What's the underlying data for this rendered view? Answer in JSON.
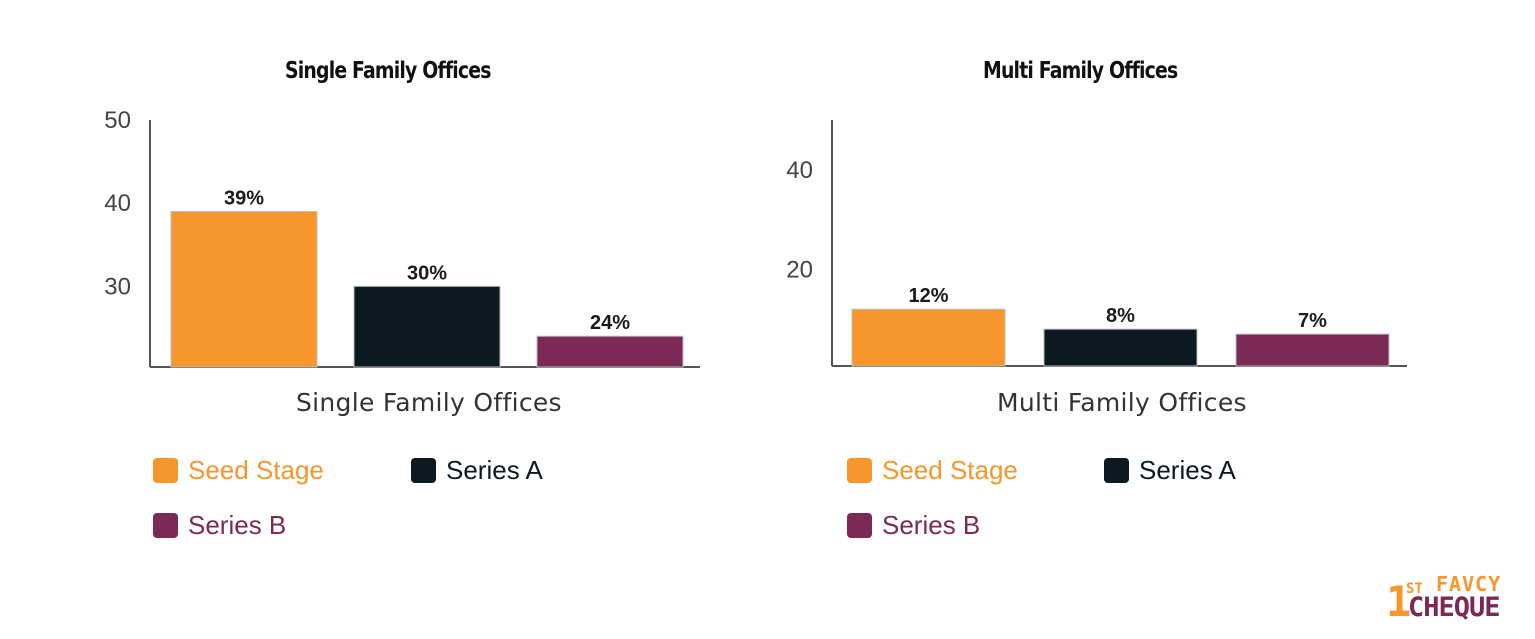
{
  "colors": {
    "seed": "#f7962b",
    "series_a": "#0b1a20",
    "series_b": "#7a2a55",
    "axis": "#555555",
    "tick_text": "#444444"
  },
  "chart_data": [
    {
      "type": "bar",
      "title": "Single Family Offices",
      "xlabel": "Single Family Offices",
      "ylabel": "",
      "categories": [
        "Seed Stage",
        "Series A",
        "Series B"
      ],
      "values": [
        39,
        30,
        24
      ],
      "data_labels": [
        "39%",
        "30%",
        "24%"
      ],
      "ylim": [
        20.3,
        50
      ],
      "yticks": [
        30,
        40,
        50
      ],
      "ytick_labels": [
        "30",
        "40",
        "50"
      ],
      "legend": [
        "Seed Stage",
        "Series A",
        "Series B"
      ],
      "legend_position": "bottom",
      "grid": false
    },
    {
      "type": "bar",
      "title": "Multi Family Offices",
      "xlabel": "Multi Family Offices",
      "ylabel": "",
      "categories": [
        "Seed Stage",
        "Series A",
        "Series B"
      ],
      "values": [
        12,
        8,
        7
      ],
      "data_labels": [
        "12%",
        "8%",
        "7%"
      ],
      "ylim": [
        0.6,
        50
      ],
      "yticks": [
        20,
        40
      ],
      "ytick_labels": [
        "20",
        "40"
      ],
      "legend": [
        "Seed Stage",
        "Series A",
        "Series B"
      ],
      "legend_position": "bottom",
      "grid": false
    }
  ],
  "logo": {
    "one": "1",
    "st": "ST",
    "brand": "FAVCY",
    "cheque": "CHEQUE"
  }
}
